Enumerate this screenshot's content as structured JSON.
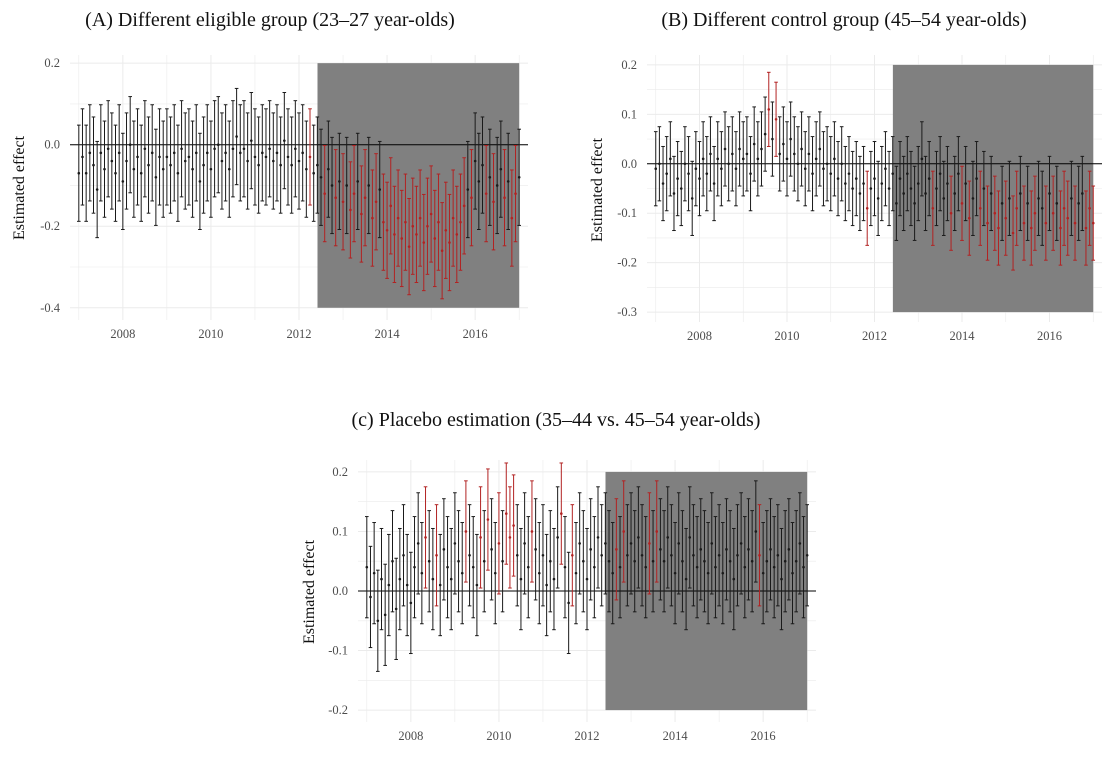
{
  "chart_data": [
    {
      "type": "scatter",
      "panel": "A",
      "title": "(A) Different eligible group (23–27 year-olds)",
      "xlabel": "",
      "ylabel": "Estimated effect",
      "xlim": [
        2006.8,
        2017.2
      ],
      "ylim": [
        -0.43,
        0.22
      ],
      "x_ticks": [
        2008,
        2010,
        2012,
        2014,
        2016
      ],
      "y_ticks": [
        -0.4,
        -0.2,
        0.0,
        0.2
      ],
      "y_tick_labels": [
        "-0.4",
        "-0.2",
        "0.0",
        "0.2"
      ],
      "shaded_region": {
        "x": [
          2012.42,
          2017.0
        ],
        "y": [
          -0.4,
          0.2
        ]
      },
      "reference_line_y": 0,
      "x_start": 2007.0,
      "x_step": 0.0833333,
      "estimates": [
        -0.07,
        -0.03,
        -0.07,
        -0.02,
        -0.05,
        -0.11,
        -0.02,
        -0.06,
        -0.01,
        -0.04,
        -0.07,
        -0.02,
        -0.09,
        -0.04,
        0.0,
        -0.06,
        -0.03,
        -0.07,
        -0.01,
        -0.05,
        -0.02,
        -0.08,
        -0.03,
        -0.06,
        -0.03,
        -0.05,
        -0.02,
        -0.07,
        -0.01,
        -0.04,
        -0.03,
        -0.06,
        -0.02,
        -0.09,
        -0.05,
        -0.02,
        -0.06,
        -0.01,
        0.0,
        -0.04,
        -0.02,
        -0.06,
        -0.01,
        0.02,
        -0.02,
        -0.01,
        -0.04,
        0.01,
        -0.03,
        -0.05,
        -0.02,
        -0.03,
        -0.01,
        -0.04,
        -0.02,
        -0.05,
        0.01,
        -0.03,
        -0.05,
        -0.01,
        -0.04,
        -0.02,
        -0.06,
        -0.03,
        -0.07,
        -0.05,
        -0.08,
        -0.12,
        -0.06,
        -0.1,
        -0.13,
        -0.09,
        -0.14,
        -0.1,
        -0.16,
        -0.12,
        -0.09,
        -0.17,
        -0.13,
        -0.1,
        -0.18,
        -0.14,
        -0.11,
        -0.19,
        -0.21,
        -0.15,
        -0.22,
        -0.18,
        -0.23,
        -0.19,
        -0.25,
        -0.2,
        -0.22,
        -0.18,
        -0.24,
        -0.2,
        -0.17,
        -0.23,
        -0.19,
        -0.26,
        -0.21,
        -0.24,
        -0.18,
        -0.22,
        -0.19,
        -0.15,
        -0.11,
        -0.13,
        -0.04,
        -0.09,
        -0.05,
        -0.12,
        -0.08,
        -0.14,
        -0.1,
        -0.06,
        -0.13,
        -0.09,
        -0.18,
        -0.12,
        -0.08
      ],
      "half_width": 0.118,
      "significant": [
        false,
        false,
        false,
        false,
        false,
        false,
        false,
        false,
        false,
        false,
        false,
        false,
        false,
        false,
        false,
        false,
        false,
        false,
        false,
        false,
        false,
        false,
        false,
        false,
        false,
        false,
        false,
        false,
        false,
        false,
        false,
        false,
        false,
        false,
        false,
        false,
        false,
        false,
        false,
        false,
        false,
        false,
        false,
        false,
        false,
        false,
        false,
        false,
        false,
        false,
        false,
        false,
        false,
        false,
        false,
        false,
        false,
        false,
        false,
        false,
        false,
        false,
        false,
        true,
        false,
        false,
        false,
        true,
        false,
        false,
        true,
        false,
        true,
        false,
        true,
        true,
        false,
        true,
        true,
        false,
        true,
        true,
        false,
        true,
        true,
        true,
        true,
        true,
        true,
        true,
        true,
        true,
        true,
        true,
        true,
        true,
        true,
        true,
        true,
        true,
        true,
        true,
        true,
        true,
        true,
        true,
        false,
        true,
        false,
        false,
        false,
        true,
        false,
        true,
        false,
        false,
        true,
        false,
        true,
        true,
        false
      ]
    },
    {
      "type": "scatter",
      "panel": "B",
      "title": "(B) Different control group (45–54 year-olds)",
      "xlabel": "",
      "ylabel": "Estimated effect",
      "xlim": [
        2006.8,
        2017.2
      ],
      "ylim": [
        -0.32,
        0.22
      ],
      "x_ticks": [
        2008,
        2010,
        2012,
        2014,
        2016
      ],
      "y_ticks": [
        -0.3,
        -0.2,
        -0.1,
        0.0,
        0.1,
        0.2
      ],
      "y_tick_labels": [
        "-0.3",
        "-0.2",
        "-0.1",
        "0.0",
        "0.1",
        "0.2"
      ],
      "shaded_region": {
        "x": [
          2012.42,
          2017.0
        ],
        "y": [
          -0.3,
          0.2
        ]
      },
      "reference_line_y": 0,
      "x_start": 2007.0,
      "x_step": 0.0833333,
      "estimates": [
        -0.01,
        0.0,
        -0.04,
        -0.02,
        0.01,
        -0.06,
        -0.03,
        -0.05,
        0.0,
        -0.02,
        -0.07,
        -0.01,
        -0.03,
        0.01,
        -0.02,
        0.02,
        -0.04,
        0.01,
        -0.01,
        0.03,
        0.0,
        0.02,
        -0.01,
        0.03,
        0.01,
        0.02,
        -0.02,
        0.04,
        0.01,
        0.03,
        0.06,
        0.11,
        0.05,
        0.09,
        0.02,
        0.04,
        0.01,
        0.05,
        0.02,
        0.0,
        0.03,
        -0.01,
        0.02,
        -0.02,
        0.01,
        0.03,
        -0.01,
        0.0,
        -0.02,
        0.01,
        -0.03,
        0.0,
        -0.04,
        -0.02,
        -0.05,
        -0.03,
        -0.06,
        -0.04,
        -0.09,
        -0.05,
        -0.03,
        -0.07,
        -0.04,
        -0.01,
        -0.05,
        -0.02,
        -0.08,
        -0.03,
        -0.06,
        -0.02,
        -0.05,
        -0.08,
        -0.04,
        0.01,
        -0.06,
        -0.03,
        -0.09,
        -0.05,
        -0.02,
        -0.07,
        -0.04,
        -0.1,
        -0.06,
        -0.02,
        -0.08,
        -0.04,
        -0.11,
        -0.07,
        -0.03,
        -0.09,
        -0.05,
        -0.12,
        -0.06,
        -0.1,
        -0.13,
        -0.08,
        -0.11,
        -0.07,
        -0.14,
        -0.09,
        -0.06,
        -0.12,
        -0.08,
        -0.13,
        -0.1,
        -0.07,
        -0.09,
        -0.12,
        -0.06,
        -0.1,
        -0.08,
        -0.13,
        -0.09,
        -0.11,
        -0.07,
        -0.12,
        -0.08,
        -0.06,
        -0.13,
        -0.09,
        -0.12
      ],
      "half_width": 0.075,
      "significant": [
        false,
        false,
        false,
        false,
        false,
        false,
        false,
        false,
        false,
        false,
        false,
        false,
        false,
        false,
        false,
        false,
        false,
        false,
        false,
        false,
        false,
        false,
        false,
        false,
        false,
        false,
        false,
        false,
        false,
        false,
        false,
        true,
        false,
        true,
        false,
        false,
        false,
        false,
        false,
        false,
        false,
        false,
        false,
        false,
        false,
        false,
        false,
        false,
        false,
        false,
        false,
        false,
        false,
        false,
        false,
        false,
        false,
        false,
        true,
        false,
        false,
        false,
        false,
        false,
        false,
        false,
        false,
        false,
        false,
        false,
        false,
        false,
        false,
        false,
        false,
        false,
        true,
        false,
        false,
        false,
        false,
        true,
        false,
        false,
        true,
        false,
        true,
        false,
        false,
        true,
        false,
        true,
        false,
        true,
        true,
        false,
        true,
        false,
        true,
        true,
        false,
        true,
        false,
        true,
        true,
        false,
        false,
        true,
        false,
        true,
        false,
        true,
        true,
        true,
        false,
        true,
        false,
        false,
        true,
        true,
        true
      ]
    },
    {
      "type": "scatter",
      "panel": "C",
      "title": "(c) Placebo estimation (35–44 vs. 45–54 year-olds)",
      "xlabel": "",
      "ylabel": "Estimated effect",
      "xlim": [
        2006.8,
        2017.2
      ],
      "ylim": [
        -0.22,
        0.22
      ],
      "x_ticks": [
        2008,
        2010,
        2012,
        2014,
        2016
      ],
      "y_ticks": [
        -0.2,
        -0.1,
        0.0,
        0.1,
        0.2
      ],
      "y_tick_labels": [
        "-0.2",
        "-0.1",
        "0.0",
        "0.1",
        "0.2"
      ],
      "shaded_region": {
        "x": [
          2012.42,
          2017.0
        ],
        "y": [
          -0.2,
          0.2
        ]
      },
      "reference_line_y": 0,
      "x_start": 2007.0,
      "x_step": 0.0833333,
      "estimates": [
        0.04,
        -0.01,
        0.03,
        -0.05,
        0.02,
        -0.04,
        0.01,
        0.05,
        -0.03,
        0.02,
        0.06,
        0.01,
        -0.02,
        0.04,
        0.08,
        0.03,
        0.09,
        0.05,
        0.02,
        0.06,
        0.01,
        0.07,
        0.04,
        0.02,
        0.08,
        0.05,
        0.03,
        0.1,
        0.06,
        0.04,
        0.01,
        0.09,
        0.05,
        0.12,
        0.07,
        0.03,
        0.08,
        0.05,
        0.13,
        0.09,
        0.11,
        0.06,
        0.02,
        0.08,
        0.04,
        0.1,
        0.07,
        0.03,
        0.06,
        0.01,
        0.05,
        0.02,
        0.09,
        0.13,
        0.04,
        -0.02,
        0.06,
        0.03,
        0.08,
        0.05,
        0.02,
        0.07,
        0.04,
        0.09,
        0.06,
        0.08,
        0.05,
        0.03,
        0.07,
        0.04,
        0.1,
        0.06,
        0.08,
        0.05,
        0.09,
        0.06,
        0.04,
        0.08,
        0.05,
        0.1,
        0.07,
        0.05,
        0.09,
        0.06,
        0.03,
        0.08,
        0.05,
        0.02,
        0.09,
        0.06,
        0.04,
        0.07,
        0.05,
        0.03,
        0.08,
        0.04,
        0.06,
        0.03,
        0.07,
        0.05,
        0.02,
        0.06,
        0.08,
        0.04,
        0.07,
        0.05,
        0.1,
        0.06,
        0.03,
        0.05,
        0.07,
        0.04,
        0.06,
        0.02,
        0.05,
        0.07,
        0.03,
        0.05,
        0.08,
        0.04,
        0.06
      ],
      "half_width": 0.085,
      "significant": [
        false,
        false,
        false,
        false,
        false,
        false,
        false,
        false,
        false,
        false,
        false,
        false,
        false,
        false,
        false,
        false,
        true,
        false,
        false,
        true,
        false,
        false,
        false,
        false,
        false,
        false,
        false,
        true,
        false,
        false,
        false,
        true,
        false,
        true,
        false,
        false,
        true,
        false,
        true,
        true,
        true,
        false,
        false,
        false,
        false,
        true,
        false,
        false,
        false,
        false,
        false,
        false,
        false,
        true,
        false,
        false,
        true,
        false,
        false,
        false,
        false,
        false,
        false,
        false,
        false,
        false,
        false,
        false,
        true,
        false,
        true,
        false,
        false,
        false,
        false,
        false,
        false,
        true,
        false,
        true,
        false,
        false,
        false,
        false,
        false,
        false,
        false,
        false,
        false,
        false,
        false,
        false,
        false,
        false,
        false,
        false,
        false,
        false,
        false,
        false,
        false,
        false,
        false,
        false,
        false,
        false,
        false,
        true,
        false,
        false,
        false,
        false,
        false,
        false,
        false,
        false,
        false,
        false,
        false,
        false,
        false
      ]
    }
  ],
  "colors": {
    "significant": "#b22222",
    "non_significant": "#1a1a1a",
    "shade": "#808080",
    "grid": "#ebebeb"
  }
}
